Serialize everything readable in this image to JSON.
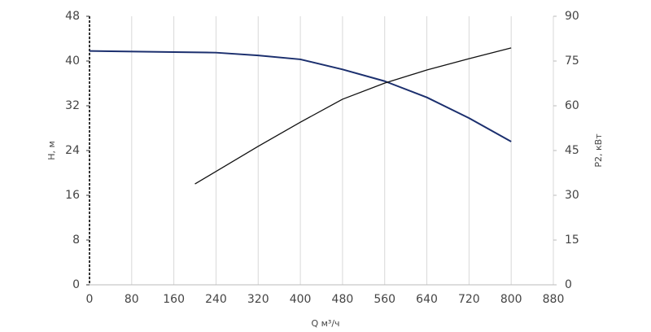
{
  "chart_data": {
    "type": "line",
    "x_label": "Q м³/ч",
    "y_label": "H, м",
    "y2_label": "P2, кВт",
    "xlim": [
      0,
      880
    ],
    "xticks": [
      0,
      80,
      160,
      240,
      320,
      400,
      480,
      560,
      640,
      720,
      800,
      880
    ],
    "ylim": [
      0,
      48
    ],
    "yticks": [
      0,
      8,
      16,
      24,
      32,
      40,
      48
    ],
    "y2lim": [
      0,
      90
    ],
    "y2ticks": [
      0,
      15,
      30,
      45,
      60,
      75,
      90
    ],
    "grid": true,
    "series": [
      {
        "color": "#1b2f6e",
        "x": [
          0,
          160,
          240,
          320,
          400,
          480,
          560,
          640,
          720,
          800
        ],
        "values": [
          41.8,
          41.6,
          41.5,
          41.0,
          40.3,
          38.5,
          36.4,
          33.5,
          29.8,
          25.6
        ]
      },
      {
        "color": "#111111",
        "axis": "y2",
        "x": [
          200,
          320,
          400,
          480,
          560,
          640,
          720,
          800
        ],
        "values": [
          33.8,
          46.4,
          54.5,
          62.2,
          67.6,
          72.0,
          75.8,
          79.4
        ]
      }
    ]
  }
}
